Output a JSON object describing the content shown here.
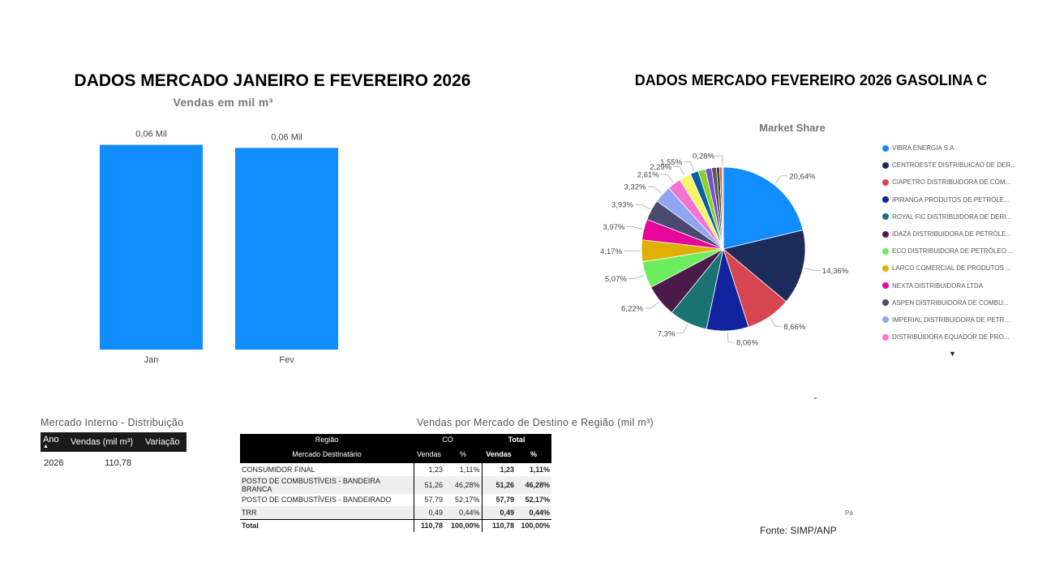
{
  "header": {
    "title_left": "DADOS MERCADO JANEIRO E FEVEREIRO 2026",
    "subtitle_left": "Vendas  em mil m³",
    "title_right": "DADOS MERCADO FEVEREIRO 2026 GASOLINA C"
  },
  "chart_data": [
    {
      "type": "bar",
      "title": "Vendas  em mil m³",
      "categories": [
        "Jan",
        "Fev"
      ],
      "values": [
        0.06,
        0.06
      ],
      "data_labels": [
        "0,06 Mil",
        "0,06 Mil"
      ],
      "color": "#118dff",
      "grid": false
    },
    {
      "type": "pie",
      "title": "Market Share",
      "legend_position": "right",
      "slices": [
        {
          "name": "VIBRA ENERGIA S.A",
          "value": 20.64,
          "label": "20,64%",
          "color": "#118dff"
        },
        {
          "name": "CENTROESTE DISTRIBUICAO DE DER...",
          "value": 14.36,
          "label": "14,36%",
          "color": "#1c2b5a"
        },
        {
          "name": "CIAPETRO DISTRIBUIDORA DE COM...",
          "value": 8.66,
          "label": "8,66%",
          "color": "#d64550"
        },
        {
          "name": "IPIRANGA PRODUTOS DE PETRÓLE...",
          "value": 8.06,
          "label": "8,06%",
          "color": "#12239e"
        },
        {
          "name": "ROYAL FIC DISTRIBUIDORA DE DERI...",
          "value": 7.3,
          "label": "7,3%",
          "color": "#1a7373"
        },
        {
          "name": "IDAZA DISTRIBUIDORA DE PETRÓLE...",
          "value": 6.22,
          "label": "6,22%",
          "color": "#4b1a4b"
        },
        {
          "name": "ECO DISTRIBUIDORA DE PETRÓLEO ...",
          "value": 5.07,
          "label": "5,07%",
          "color": "#6bed5e"
        },
        {
          "name": "LARCO COMERCIAL DE PRODUTOS ...",
          "value": 4.17,
          "label": "4,17%",
          "color": "#e0b000"
        },
        {
          "name": "NEXTA DISTRIBUIDORA LTDA",
          "value": 3.97,
          "label": "3,97%",
          "color": "#e6049a"
        },
        {
          "name": "ASPEN DISTRIBUIDORA DE COMBU...",
          "value": 3.93,
          "label": "3,93%",
          "color": "#4a4a70"
        },
        {
          "name": "IMPERIAL DISTRIBUIDORA DE PETR...",
          "value": 3.32,
          "label": "3,32%",
          "color": "#90a4f0"
        },
        {
          "name": "DISTRIBUIDORA EQUADOR DE PRO...",
          "value": 2.61,
          "label": "2,61%",
          "color": "#f472d0"
        },
        {
          "name": "",
          "value": 2.29,
          "label": "2,29%",
          "color": "#f5f56a"
        },
        {
          "name": "",
          "value": 1.55,
          "label": "1,55%",
          "color": "#0a5ea8"
        },
        {
          "name": "",
          "value": 1.4,
          "label": "",
          "color": "#8ad12a"
        },
        {
          "name": "",
          "value": 1.2,
          "label": "",
          "color": "#7a4fd0"
        },
        {
          "name": "",
          "value": 0.9,
          "label": "",
          "color": "#555555"
        },
        {
          "name": "",
          "value": 0.6,
          "label": "",
          "color": "#3a3a3a"
        },
        {
          "name": "",
          "value": 0.45,
          "label": "",
          "color": "#c06030"
        },
        {
          "name": "",
          "value": 0.28,
          "label": "0,28%",
          "color": "#f0a0a0"
        }
      ]
    },
    {
      "type": "table",
      "title": "Mercado Interno - Distribuição",
      "columns": [
        "Ano",
        "Vendas (mil m³)",
        "Variação"
      ],
      "rows": [
        [
          "2026",
          "110,78",
          ""
        ]
      ]
    },
    {
      "type": "table",
      "title": "Vendas por Mercado de Destino e Região (mil m³)",
      "columns": [
        "Região / Mercado Destinatário",
        "CO Vendas",
        "CO %",
        "Total Vendas",
        "Total %"
      ],
      "rows": [
        [
          "CONSUMIDOR FINAL",
          "1,23",
          "1,11%",
          "1,23",
          "1,11%"
        ],
        [
          "POSTO DE COMBUSTÍVEIS - BANDEIRA BRANCA",
          "51,26",
          "46,28%",
          "51,26",
          "46,28%"
        ],
        [
          "POSTO DE COMBUSTÍVEIS - BANDEIRADO",
          "57,79",
          "52,17%",
          "57,79",
          "52,17%"
        ],
        [
          "TRR",
          "0,49",
          "0,44%",
          "0,49",
          "0,44%"
        ],
        [
          "Total",
          "110,78",
          "100,00%",
          "110,78",
          "100,00%"
        ]
      ]
    }
  ],
  "mercado_interno": {
    "title": "Mercado Interno - Distribuição",
    "col_ano": "Ano",
    "col_vendas": "Vendas (mil m³)",
    "col_variacao": "Variação",
    "row_ano": "2026",
    "row_vendas": "110,78",
    "row_variacao": ""
  },
  "destino": {
    "title": "Vendas por Mercado de Destino e Região (mil m³)",
    "h_regiao": "Região",
    "h_mercado": "Mercado Destinatário",
    "h_co": "CO",
    "h_total": "Total",
    "h_vendas": "Vendas",
    "h_pct": "%",
    "rows": [
      {
        "label": "CONSUMIDOR FINAL",
        "co_v": "1,23",
        "co_p": "1,11%",
        "t_v": "1,23",
        "t_p": "1,11%"
      },
      {
        "label": "POSTO DE COMBUSTÍVEIS - BANDEIRA BRANCA",
        "co_v": "51,26",
        "co_p": "46,28%",
        "t_v": "51,26",
        "t_p": "46,28%"
      },
      {
        "label": "POSTO DE COMBUSTÍVEIS - BANDEIRADO",
        "co_v": "57,79",
        "co_p": "52,17%",
        "t_v": "57,79",
        "t_p": "52,17%"
      },
      {
        "label": "TRR",
        "co_v": "0,49",
        "co_p": "0,44%",
        "t_v": "0,49",
        "t_p": "0,44%"
      }
    ],
    "total": {
      "label": "Total",
      "co_v": "110,78",
      "co_p": "100,00%",
      "t_v": "110,78",
      "t_p": "100,00%"
    }
  },
  "footer": {
    "source": "Fonte: SIMP/ANP",
    "page_fragment": "Pá"
  }
}
